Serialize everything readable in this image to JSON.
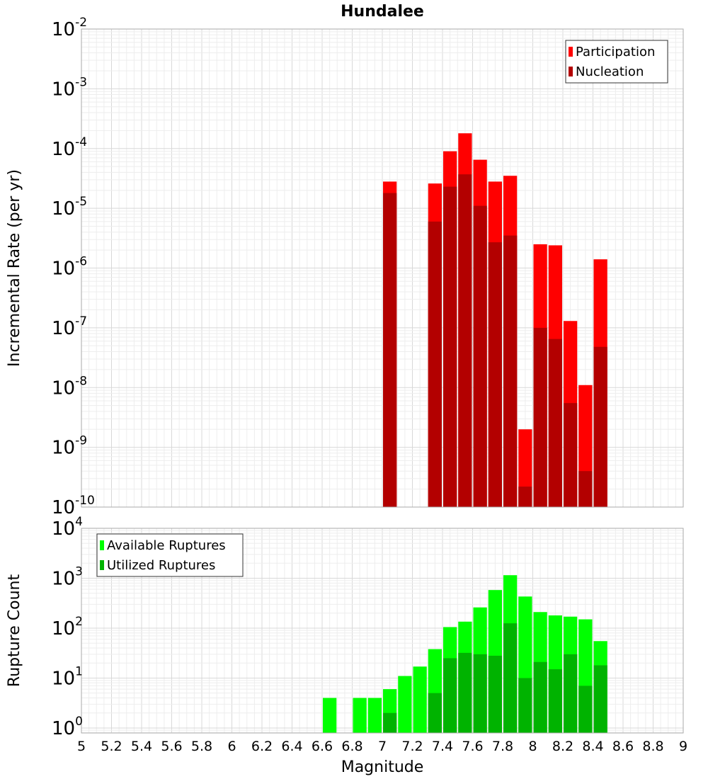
{
  "chart_data": [
    {
      "type": "bar",
      "title": "Hundalee",
      "xlabel": "",
      "ylabel": "Incremental Rate (per yr)",
      "xlim": [
        5,
        9
      ],
      "ylim_log10": [
        -10,
        -2
      ],
      "y_scale": "log",
      "y_tick_exponents": [
        "-2",
        "-3",
        "-4",
        "-5",
        "-6",
        "-7",
        "-8",
        "-9",
        "-10"
      ],
      "legend_position": "top-right",
      "series": [
        {
          "name": "Participation",
          "color": "#ff0000",
          "points": [
            {
              "x": 7.05,
              "y": 2.8e-05
            },
            {
              "x": 7.35,
              "y": 2.6e-05
            },
            {
              "x": 7.45,
              "y": 9e-05
            },
            {
              "x": 7.55,
              "y": 0.00018
            },
            {
              "x": 7.65,
              "y": 6.5e-05
            },
            {
              "x": 7.75,
              "y": 2.8e-05
            },
            {
              "x": 7.85,
              "y": 3.5e-05
            },
            {
              "x": 7.95,
              "y": 2e-09
            },
            {
              "x": 8.05,
              "y": 2.5e-06
            },
            {
              "x": 8.15,
              "y": 2.4e-06
            },
            {
              "x": 8.25,
              "y": 1.3e-07
            },
            {
              "x": 8.35,
              "y": 1.1e-08
            },
            {
              "x": 8.45,
              "y": 1.4e-06
            }
          ]
        },
        {
          "name": "Nucleation",
          "color": "#b30000",
          "points": [
            {
              "x": 7.05,
              "y": 1.8e-05
            },
            {
              "x": 7.35,
              "y": 6e-06
            },
            {
              "x": 7.45,
              "y": 2.3e-05
            },
            {
              "x": 7.55,
              "y": 3.7e-05
            },
            {
              "x": 7.65,
              "y": 1.1e-05
            },
            {
              "x": 7.75,
              "y": 2.7e-06
            },
            {
              "x": 7.85,
              "y": 3.5e-06
            },
            {
              "x": 7.95,
              "y": 2.2e-10
            },
            {
              "x": 8.05,
              "y": 1e-07
            },
            {
              "x": 8.15,
              "y": 6.5e-08
            },
            {
              "x": 8.25,
              "y": 5.5e-09
            },
            {
              "x": 8.35,
              "y": 4e-10
            },
            {
              "x": 8.45,
              "y": 4.8e-08
            }
          ]
        }
      ]
    },
    {
      "type": "bar",
      "title": "",
      "xlabel": "Magnitude",
      "ylabel": "Rupture Count",
      "xlim": [
        5,
        9
      ],
      "ylim_log10": [
        -0.1,
        4
      ],
      "y_scale": "log",
      "y_tick_exponents": [
        "4",
        "3",
        "2",
        "1",
        "0"
      ],
      "x_tick_labels": [
        "5",
        "5.2",
        "5.4",
        "5.6",
        "5.8",
        "6",
        "6.2",
        "6.4",
        "6.6",
        "6.8",
        "7",
        "7.2",
        "7.4",
        "7.6",
        "7.8",
        "8",
        "8.2",
        "8.4",
        "8.6",
        "8.8",
        "9"
      ],
      "legend_position": "top-left",
      "series": [
        {
          "name": "Available Ruptures",
          "color": "#00ff00",
          "points": [
            {
              "x": 6.65,
              "y": 4
            },
            {
              "x": 6.85,
              "y": 4
            },
            {
              "x": 6.95,
              "y": 4
            },
            {
              "x": 7.05,
              "y": 6
            },
            {
              "x": 7.15,
              "y": 11
            },
            {
              "x": 7.25,
              "y": 17
            },
            {
              "x": 7.35,
              "y": 38
            },
            {
              "x": 7.45,
              "y": 105
            },
            {
              "x": 7.55,
              "y": 135
            },
            {
              "x": 7.65,
              "y": 260
            },
            {
              "x": 7.75,
              "y": 580
            },
            {
              "x": 7.85,
              "y": 1150
            },
            {
              "x": 7.95,
              "y": 430
            },
            {
              "x": 8.05,
              "y": 210
            },
            {
              "x": 8.15,
              "y": 180
            },
            {
              "x": 8.25,
              "y": 170
            },
            {
              "x": 8.35,
              "y": 150
            },
            {
              "x": 8.45,
              "y": 55
            }
          ]
        },
        {
          "name": "Utilized Ruptures",
          "color": "#00b300",
          "points": [
            {
              "x": 7.05,
              "y": 2
            },
            {
              "x": 7.35,
              "y": 5
            },
            {
              "x": 7.45,
              "y": 25
            },
            {
              "x": 7.55,
              "y": 32
            },
            {
              "x": 7.65,
              "y": 30
            },
            {
              "x": 7.75,
              "y": 28
            },
            {
              "x": 7.85,
              "y": 125
            },
            {
              "x": 7.95,
              "y": 10
            },
            {
              "x": 8.05,
              "y": 21
            },
            {
              "x": 8.15,
              "y": 15
            },
            {
              "x": 8.25,
              "y": 30
            },
            {
              "x": 8.35,
              "y": 7
            },
            {
              "x": 8.45,
              "y": 18
            }
          ]
        }
      ]
    }
  ]
}
